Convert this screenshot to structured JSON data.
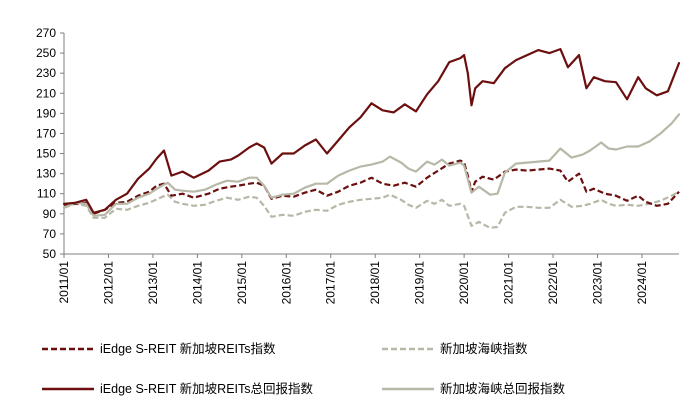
{
  "chart_data": {
    "type": "line",
    "title": "",
    "xlabel": "",
    "ylabel": "",
    "ylim": [
      50,
      270
    ],
    "yticks": [
      50,
      70,
      90,
      110,
      130,
      150,
      170,
      190,
      210,
      230,
      250,
      270
    ],
    "xlim": [
      "2011-01",
      "2024-11"
    ],
    "xticks": [
      "2011/01",
      "2012/01",
      "2013/01",
      "2014/01",
      "2015/01",
      "2016/01",
      "2017/01",
      "2018/01",
      "2019/01",
      "2020/01",
      "2021/01",
      "2022/01",
      "2023/01",
      "2024/01"
    ],
    "grid": false,
    "legend_position": "bottom",
    "series": [
      {
        "name": "iEdge S-REIT 新加坡REITs指数",
        "color": "#6B0F0F",
        "style": "dashed",
        "points": [
          [
            "2011-01",
            99
          ],
          [
            "2011-04",
            100
          ],
          [
            "2011-07",
            101
          ],
          [
            "2011-09",
            90
          ],
          [
            "2011-12",
            94
          ],
          [
            "2012-03",
            101
          ],
          [
            "2012-06",
            102
          ],
          [
            "2012-09",
            108
          ],
          [
            "2012-12",
            112
          ],
          [
            "2013-02",
            118
          ],
          [
            "2013-04",
            120
          ],
          [
            "2013-06",
            108
          ],
          [
            "2013-09",
            110
          ],
          [
            "2013-12",
            106
          ],
          [
            "2014-04",
            110
          ],
          [
            "2014-07",
            115
          ],
          [
            "2014-10",
            117
          ],
          [
            "2014-12",
            118
          ],
          [
            "2015-03",
            120
          ],
          [
            "2015-05",
            121
          ],
          [
            "2015-07",
            118
          ],
          [
            "2015-09",
            105
          ],
          [
            "2015-12",
            108
          ],
          [
            "2016-03",
            107
          ],
          [
            "2016-06",
            111
          ],
          [
            "2016-09",
            114
          ],
          [
            "2016-12",
            108
          ],
          [
            "2017-03",
            112
          ],
          [
            "2017-06",
            118
          ],
          [
            "2017-09",
            121
          ],
          [
            "2017-12",
            126
          ],
          [
            "2018-03",
            120
          ],
          [
            "2018-06",
            118
          ],
          [
            "2018-09",
            121
          ],
          [
            "2018-12",
            117
          ],
          [
            "2019-03",
            126
          ],
          [
            "2019-06",
            133
          ],
          [
            "2019-09",
            140
          ],
          [
            "2019-12",
            143
          ],
          [
            "2020-01",
            141
          ],
          [
            "2020-02",
            128
          ],
          [
            "2020-03",
            112
          ],
          [
            "2020-04",
            122
          ],
          [
            "2020-06",
            127
          ],
          [
            "2020-09",
            124
          ],
          [
            "2020-12",
            132
          ],
          [
            "2021-03",
            134
          ],
          [
            "2021-06",
            133
          ],
          [
            "2021-09",
            134
          ],
          [
            "2021-12",
            135
          ],
          [
            "2022-03",
            133
          ],
          [
            "2022-05",
            122
          ],
          [
            "2022-08",
            130
          ],
          [
            "2022-10",
            112
          ],
          [
            "2022-12",
            115
          ],
          [
            "2023-03",
            110
          ],
          [
            "2023-06",
            108
          ],
          [
            "2023-09",
            103
          ],
          [
            "2023-12",
            108
          ],
          [
            "2024-02",
            102
          ],
          [
            "2024-05",
            98
          ],
          [
            "2024-08",
            100
          ],
          [
            "2024-11",
            112
          ]
        ]
      },
      {
        "name": "新加坡海峡指数",
        "color": "#B8B8A8",
        "style": "dashed",
        "points": [
          [
            "2011-01",
            96
          ],
          [
            "2011-04",
            100
          ],
          [
            "2011-07",
            98
          ],
          [
            "2011-09",
            86
          ],
          [
            "2011-12",
            86
          ],
          [
            "2012-03",
            95
          ],
          [
            "2012-06",
            94
          ],
          [
            "2012-09",
            98
          ],
          [
            "2012-12",
            101
          ],
          [
            "2013-03",
            106
          ],
          [
            "2013-05",
            109
          ],
          [
            "2013-07",
            102
          ],
          [
            "2013-09",
            100
          ],
          [
            "2013-12",
            98
          ],
          [
            "2014-03",
            99
          ],
          [
            "2014-06",
            103
          ],
          [
            "2014-09",
            106
          ],
          [
            "2014-12",
            104
          ],
          [
            "2015-03",
            107
          ],
          [
            "2015-05",
            106
          ],
          [
            "2015-07",
            98
          ],
          [
            "2015-09",
            87
          ],
          [
            "2015-12",
            89
          ],
          [
            "2016-03",
            88
          ],
          [
            "2016-06",
            92
          ],
          [
            "2016-09",
            94
          ],
          [
            "2016-12",
            93
          ],
          [
            "2017-03",
            99
          ],
          [
            "2017-06",
            102
          ],
          [
            "2017-09",
            104
          ],
          [
            "2017-12",
            105
          ],
          [
            "2018-03",
            106
          ],
          [
            "2018-05",
            109
          ],
          [
            "2018-08",
            104
          ],
          [
            "2018-10",
            99
          ],
          [
            "2018-12",
            96
          ],
          [
            "2019-03",
            103
          ],
          [
            "2019-05",
            100
          ],
          [
            "2019-07",
            104
          ],
          [
            "2019-09",
            98
          ],
          [
            "2019-12",
            100
          ],
          [
            "2020-01",
            98
          ],
          [
            "2020-03",
            78
          ],
          [
            "2020-05",
            82
          ],
          [
            "2020-08",
            76
          ],
          [
            "2020-10",
            77
          ],
          [
            "2020-12",
            91
          ],
          [
            "2021-03",
            97
          ],
          [
            "2021-06",
            97
          ],
          [
            "2021-09",
            96
          ],
          [
            "2021-12",
            96
          ],
          [
            "2022-03",
            104
          ],
          [
            "2022-06",
            97
          ],
          [
            "2022-09",
            98
          ],
          [
            "2022-11",
            100
          ],
          [
            "2023-02",
            104
          ],
          [
            "2023-04",
            100
          ],
          [
            "2023-06",
            98
          ],
          [
            "2023-09",
            99
          ],
          [
            "2023-12",
            98
          ],
          [
            "2024-03",
            100
          ],
          [
            "2024-06",
            103
          ],
          [
            "2024-09",
            108
          ],
          [
            "2024-11",
            112
          ]
        ]
      },
      {
        "name": "iEdge S-REIT 新加坡REITs总回报指数",
        "color": "#6B0F0F",
        "style": "solid",
        "points": [
          [
            "2011-01",
            100
          ],
          [
            "2011-04",
            101
          ],
          [
            "2011-07",
            104
          ],
          [
            "2011-09",
            91
          ],
          [
            "2011-12",
            94
          ],
          [
            "2012-03",
            104
          ],
          [
            "2012-06",
            110
          ],
          [
            "2012-09",
            125
          ],
          [
            "2012-12",
            135
          ],
          [
            "2013-02",
            145
          ],
          [
            "2013-04",
            153
          ],
          [
            "2013-06",
            128
          ],
          [
            "2013-09",
            132
          ],
          [
            "2013-12",
            126
          ],
          [
            "2014-04",
            133
          ],
          [
            "2014-07",
            142
          ],
          [
            "2014-10",
            144
          ],
          [
            "2014-12",
            148
          ],
          [
            "2015-03",
            156
          ],
          [
            "2015-05",
            160
          ],
          [
            "2015-07",
            156
          ],
          [
            "2015-09",
            140
          ],
          [
            "2015-12",
            150
          ],
          [
            "2016-03",
            150
          ],
          [
            "2016-06",
            158
          ],
          [
            "2016-09",
            164
          ],
          [
            "2016-12",
            150
          ],
          [
            "2017-03",
            163
          ],
          [
            "2017-06",
            176
          ],
          [
            "2017-09",
            186
          ],
          [
            "2017-12",
            200
          ],
          [
            "2018-03",
            193
          ],
          [
            "2018-06",
            191
          ],
          [
            "2018-09",
            199
          ],
          [
            "2018-12",
            192
          ],
          [
            "2019-03",
            209
          ],
          [
            "2019-06",
            222
          ],
          [
            "2019-09",
            241
          ],
          [
            "2019-12",
            245
          ],
          [
            "2020-01",
            248
          ],
          [
            "2020-02",
            230
          ],
          [
            "2020-03",
            198
          ],
          [
            "2020-04",
            215
          ],
          [
            "2020-06",
            222
          ],
          [
            "2020-09",
            220
          ],
          [
            "2020-12",
            235
          ],
          [
            "2021-03",
            243
          ],
          [
            "2021-06",
            248
          ],
          [
            "2021-09",
            253
          ],
          [
            "2021-12",
            250
          ],
          [
            "2022-03",
            254
          ],
          [
            "2022-05",
            236
          ],
          [
            "2022-08",
            248
          ],
          [
            "2022-10",
            215
          ],
          [
            "2022-12",
            226
          ],
          [
            "2023-03",
            222
          ],
          [
            "2023-06",
            221
          ],
          [
            "2023-09",
            204
          ],
          [
            "2023-12",
            226
          ],
          [
            "2024-02",
            215
          ],
          [
            "2024-05",
            208
          ],
          [
            "2024-08",
            212
          ],
          [
            "2024-11",
            240
          ]
        ]
      },
      {
        "name": "新加坡海峡总回报指数",
        "color": "#B8B8A8",
        "style": "solid",
        "points": [
          [
            "2011-01",
            96
          ],
          [
            "2011-04",
            101
          ],
          [
            "2011-07",
            100
          ],
          [
            "2011-09",
            88
          ],
          [
            "2011-12",
            89
          ],
          [
            "2012-03",
            100
          ],
          [
            "2012-06",
            100
          ],
          [
            "2012-09",
            106
          ],
          [
            "2012-12",
            110
          ],
          [
            "2013-03",
            117
          ],
          [
            "2013-05",
            121
          ],
          [
            "2013-07",
            114
          ],
          [
            "2013-09",
            113
          ],
          [
            "2013-12",
            112
          ],
          [
            "2014-03",
            114
          ],
          [
            "2014-06",
            119
          ],
          [
            "2014-09",
            123
          ],
          [
            "2014-12",
            122
          ],
          [
            "2015-03",
            126
          ],
          [
            "2015-05",
            126
          ],
          [
            "2015-07",
            118
          ],
          [
            "2015-09",
            106
          ],
          [
            "2015-12",
            109
          ],
          [
            "2016-03",
            110
          ],
          [
            "2016-06",
            116
          ],
          [
            "2016-09",
            120
          ],
          [
            "2016-12",
            120
          ],
          [
            "2017-03",
            128
          ],
          [
            "2017-06",
            133
          ],
          [
            "2017-09",
            137
          ],
          [
            "2017-12",
            139
          ],
          [
            "2018-03",
            142
          ],
          [
            "2018-05",
            147
          ],
          [
            "2018-08",
            141
          ],
          [
            "2018-10",
            135
          ],
          [
            "2018-12",
            132
          ],
          [
            "2019-03",
            142
          ],
          [
            "2019-05",
            139
          ],
          [
            "2019-07",
            144
          ],
          [
            "2019-09",
            138
          ],
          [
            "2019-12",
            141
          ],
          [
            "2020-01",
            138
          ],
          [
            "2020-03",
            111
          ],
          [
            "2020-05",
            117
          ],
          [
            "2020-08",
            109
          ],
          [
            "2020-10",
            110
          ],
          [
            "2020-12",
            131
          ],
          [
            "2021-03",
            140
          ],
          [
            "2021-06",
            141
          ],
          [
            "2021-09",
            142
          ],
          [
            "2021-12",
            143
          ],
          [
            "2022-03",
            155
          ],
          [
            "2022-06",
            146
          ],
          [
            "2022-09",
            149
          ],
          [
            "2022-11",
            153
          ],
          [
            "2023-02",
            161
          ],
          [
            "2023-04",
            155
          ],
          [
            "2023-06",
            154
          ],
          [
            "2023-09",
            157
          ],
          [
            "2023-12",
            157
          ],
          [
            "2024-03",
            162
          ],
          [
            "2024-06",
            170
          ],
          [
            "2024-09",
            180
          ],
          [
            "2024-11",
            189
          ]
        ]
      }
    ]
  }
}
